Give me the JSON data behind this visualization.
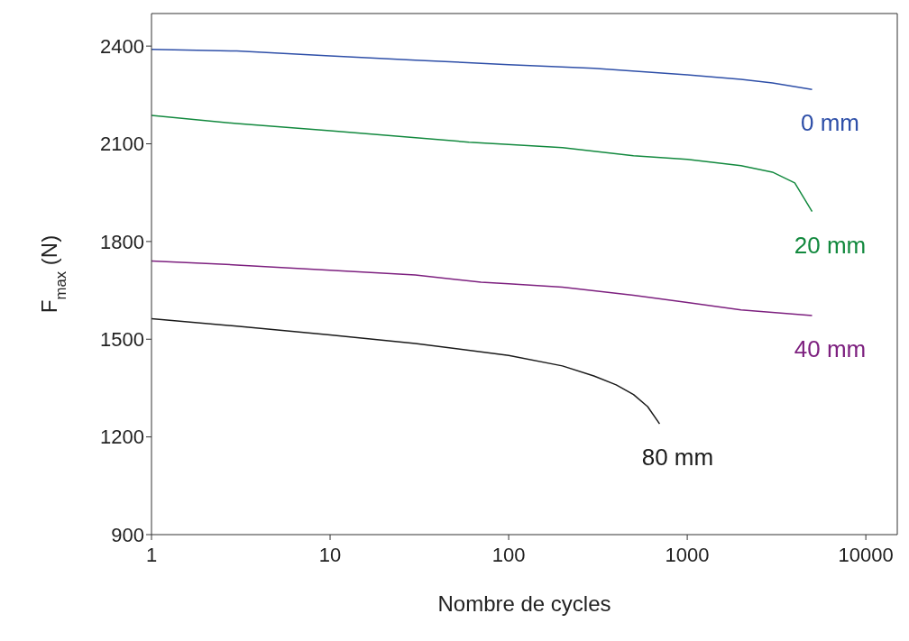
{
  "chart_data": {
    "type": "line",
    "xlabel": "Nombre de cycles",
    "ylabel": "F$_{max}$ (N)",
    "log": "x",
    "xlim": [
      1,
      15000
    ],
    "xticks": [
      1,
      10,
      100,
      1000,
      10000
    ],
    "ylim": [
      900,
      2500
    ],
    "yticks": [
      900,
      1200,
      1500,
      1800,
      2100,
      2400
    ],
    "marker": "none",
    "line_style": "solid",
    "series": [
      {
        "name": "0 mm",
        "color": "#2e4fa8",
        "x": [
          1,
          3,
          10,
          30,
          100,
          300,
          1000,
          2000,
          3000,
          5000
        ],
        "values": [
          2390,
          2385,
          2370,
          2357,
          2343,
          2332,
          2312,
          2298,
          2287,
          2267
        ]
      },
      {
        "name": "20 mm",
        "color": "#12893e",
        "x": [
          1,
          3,
          10,
          60,
          100,
          200,
          500,
          1000,
          2000,
          3000,
          4000,
          5000
        ],
        "values": [
          2187,
          2162,
          2140,
          2105,
          2098,
          2088,
          2063,
          2052,
          2033,
          2013,
          1980,
          1892
        ]
      },
      {
        "name": "40 mm",
        "color": "#7d207f",
        "x": [
          1,
          3,
          10,
          30,
          70,
          100,
          200,
          500,
          1000,
          2000,
          5000
        ],
        "values": [
          1740,
          1728,
          1712,
          1697,
          1675,
          1670,
          1660,
          1635,
          1613,
          1590,
          1573
        ]
      },
      {
        "name": "80 mm",
        "color": "#1a1a1a",
        "x": [
          1,
          3,
          10,
          30,
          100,
          200,
          300,
          400,
          500,
          600,
          700
        ],
        "values": [
          1563,
          1540,
          1513,
          1487,
          1450,
          1418,
          1387,
          1360,
          1330,
          1293,
          1240
        ]
      }
    ]
  }
}
